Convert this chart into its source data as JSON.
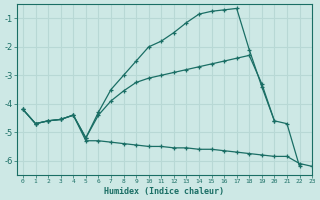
{
  "xlabel": "Humidex (Indice chaleur)",
  "background_color": "#cde8e5",
  "grid_color": "#b8d8d5",
  "line_color": "#1a6e65",
  "xlim": [
    -0.5,
    23
  ],
  "ylim": [
    -6.5,
    -0.5
  ],
  "yticks": [
    -6,
    -5,
    -4,
    -3,
    -2,
    -1
  ],
  "xticks": [
    0,
    1,
    2,
    3,
    4,
    5,
    6,
    7,
    8,
    9,
    10,
    11,
    12,
    13,
    14,
    15,
    16,
    17,
    18,
    19,
    20,
    21,
    22,
    23
  ],
  "line1_x": [
    0,
    1,
    2,
    3,
    4,
    5,
    6,
    7,
    8,
    9,
    10,
    11,
    12,
    13,
    14,
    15,
    16,
    17,
    18,
    19,
    20,
    21,
    22
  ],
  "line1_y": [
    -4.2,
    -4.7,
    -4.6,
    -4.55,
    -4.4,
    -5.2,
    -4.3,
    -3.5,
    -3.0,
    -2.5,
    -2.0,
    -1.8,
    -1.5,
    -1.15,
    -0.85,
    -0.75,
    -0.7,
    -0.65,
    -2.1,
    -3.4,
    -4.6,
    -4.7,
    -6.2
  ],
  "line2_x": [
    0,
    1,
    2,
    3,
    4,
    5,
    6,
    7,
    8,
    9,
    10,
    11,
    12,
    13,
    14,
    15,
    16,
    17,
    18,
    19,
    20
  ],
  "line2_y": [
    -4.2,
    -4.7,
    -4.6,
    -4.55,
    -4.4,
    -5.2,
    -4.4,
    -3.9,
    -3.55,
    -3.25,
    -3.1,
    -3.0,
    -2.9,
    -2.8,
    -2.7,
    -2.6,
    -2.5,
    -2.4,
    -2.3,
    -3.3,
    -4.6
  ],
  "line3_x": [
    0,
    1,
    2,
    3,
    4,
    5,
    6,
    7,
    8,
    9,
    10,
    11,
    12,
    13,
    14,
    15,
    16,
    17,
    18,
    19,
    20,
    21,
    22,
    23
  ],
  "line3_y": [
    -4.2,
    -4.7,
    -4.6,
    -4.55,
    -4.4,
    -5.3,
    -5.3,
    -5.35,
    -5.4,
    -5.45,
    -5.5,
    -5.5,
    -5.55,
    -5.55,
    -5.6,
    -5.6,
    -5.65,
    -5.7,
    -5.75,
    -5.8,
    -5.85,
    -5.85,
    -6.1,
    -6.2
  ]
}
